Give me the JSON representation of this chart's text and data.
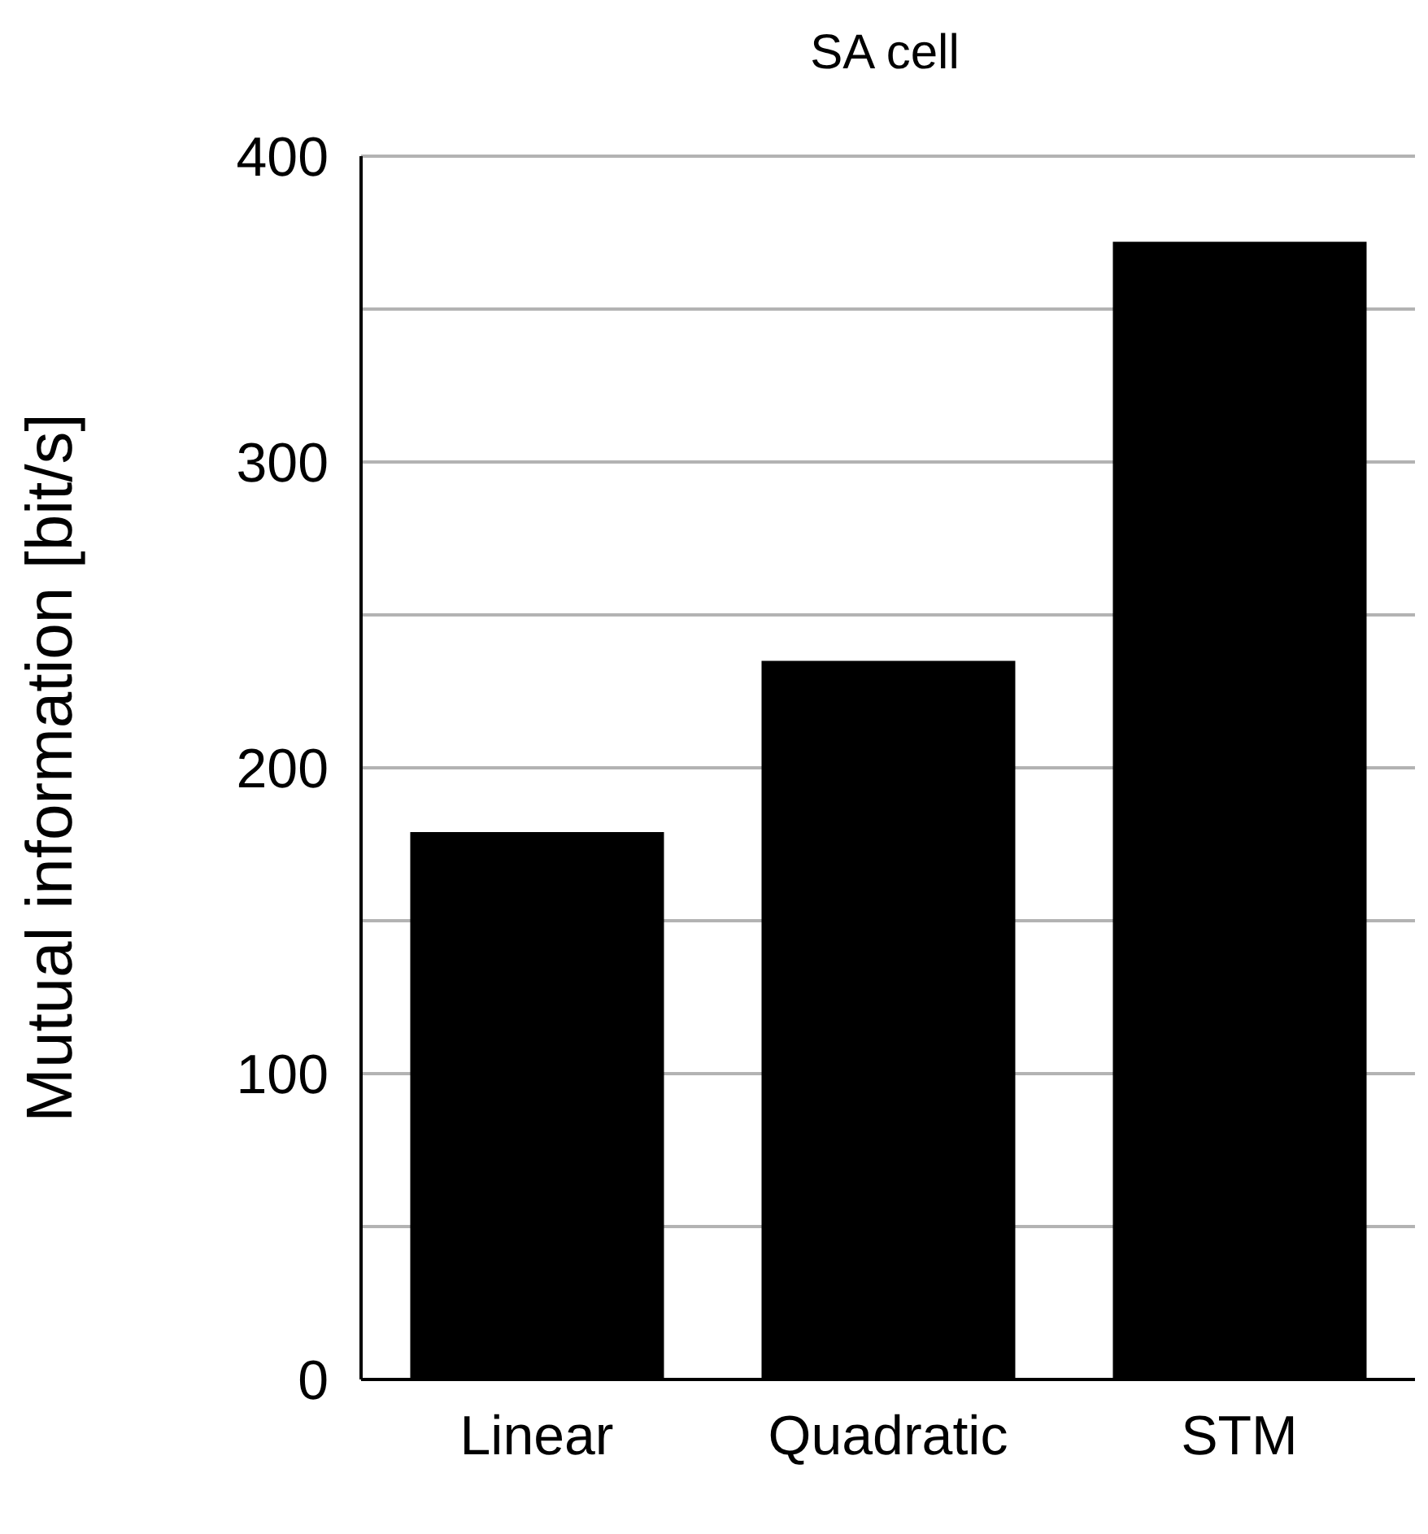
{
  "chart_data": {
    "type": "bar",
    "title": "SA cell",
    "ylabel": "Mutual information [bit/s]",
    "categories": [
      "Linear",
      "Quadratic",
      "STM"
    ],
    "values": [
      179,
      235,
      372
    ],
    "color": "#000000",
    "ylim": [
      0,
      400
    ],
    "yticks": [
      0,
      {
        "value": 50,
        "label": null
      },
      100,
      {
        "value": 150,
        "label": null
      },
      200,
      {
        "value": 250,
        "label": null
      },
      300,
      {
        "value": 350,
        "label": null
      },
      400
    ],
    "grid": "y",
    "legend": false
  }
}
